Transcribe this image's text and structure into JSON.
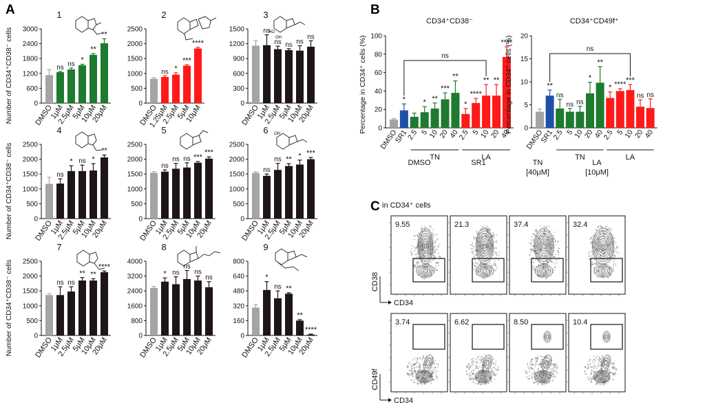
{
  "figure": {
    "panel_labels": {
      "a": "A",
      "b": "B",
      "c": "C"
    },
    "colors": {
      "gray": "#a4a4a4",
      "green": "#1e7a2e",
      "red": "#ff1a1a",
      "blue": "#1f50a8",
      "black": "#1e1517"
    }
  },
  "chart_data": [
    {
      "id": "a1",
      "panel": "A",
      "type": "bar",
      "title": "1",
      "structure_icon": "phthalide-compound-1-structure-icon",
      "ylabel": "Number of CD34⁺CD38⁻ cells",
      "categories": [
        "DMSO",
        "1μM",
        "2.5μM",
        "5μM",
        "10μM",
        "20μM"
      ],
      "values": [
        1130,
        1250,
        1360,
        1530,
        1950,
        2420
      ],
      "errors": [
        220,
        30,
        60,
        40,
        50,
        180
      ],
      "significance": [
        "",
        "ns",
        "ns",
        "*",
        "**",
        "**"
      ],
      "ylim": [
        0,
        3000
      ],
      "yticks": [
        0,
        600,
        1200,
        1800,
        2400,
        3000
      ],
      "colors": [
        "gray",
        "green",
        "green",
        "green",
        "green",
        "green"
      ]
    },
    {
      "id": "a2",
      "panel": "A",
      "type": "bar",
      "title": "2",
      "structure_icon": "dimeric-phthalide-compound-2-structure-icon",
      "ylabel": "",
      "categories": [
        "DMSO",
        "1.25μM",
        "2.5μM",
        "5μM",
        "10μM"
      ],
      "values": [
        820,
        880,
        960,
        1260,
        1840
      ],
      "errors": [
        40,
        40,
        60,
        30,
        40
      ],
      "significance": [
        "",
        "ns",
        "*",
        "***",
        "****"
      ],
      "ylim": [
        0,
        2500
      ],
      "yticks": [
        0,
        500,
        1000,
        1500,
        2000,
        2500
      ],
      "colors": [
        "gray",
        "red",
        "red",
        "red",
        "red"
      ]
    },
    {
      "id": "a3",
      "panel": "A",
      "type": "bar",
      "title": "3",
      "structure_icon": "dihydroxy-phthalide-compound-3-structure-icon",
      "ylabel": "",
      "categories": [
        "DMSO",
        "1μM",
        "2.5μM",
        "5μM",
        "10μM",
        "20μM"
      ],
      "values": [
        1160,
        1170,
        1090,
        1070,
        1060,
        1140
      ],
      "errors": [
        100,
        210,
        60,
        30,
        100,
        120
      ],
      "significance": [
        "",
        "ns",
        "ns",
        "ns",
        "ns",
        "ns"
      ],
      "ylim": [
        0,
        1500
      ],
      "yticks": [
        0,
        300,
        600,
        900,
        1200,
        1500
      ],
      "colors": [
        "gray",
        "black",
        "black",
        "black",
        "black",
        "black"
      ]
    },
    {
      "id": "a4",
      "panel": "A",
      "type": "bar",
      "title": "4",
      "structure_icon": "butylidene-phthalide-compound-4-structure-icon",
      "ylabel": "Number of CD34⁺CD38⁻ cells",
      "categories": [
        "DMSO",
        "1μM",
        "2.5μM",
        "5μM",
        "10μM",
        "20μM"
      ],
      "values": [
        1170,
        1180,
        1600,
        1600,
        1620,
        2060
      ],
      "errors": [
        220,
        160,
        180,
        200,
        230,
        80
      ],
      "significance": [
        "",
        "ns",
        "*",
        "ns",
        "*",
        "**"
      ],
      "ylim": [
        0,
        2500
      ],
      "yticks": [
        0,
        500,
        1000,
        1500,
        2000,
        2500
      ],
      "colors": [
        "gray",
        "black",
        "black",
        "black",
        "black",
        "black"
      ]
    },
    {
      "id": "a5",
      "panel": "A",
      "type": "bar",
      "title": "5",
      "structure_icon": "phthalide-compound-5-structure-icon",
      "ylabel": "",
      "categories": [
        "DMSO",
        "1μM",
        "2.5μM",
        "5μM",
        "10μM",
        "20μM"
      ],
      "values": [
        1540,
        1580,
        1680,
        1720,
        1880,
        2020
      ],
      "errors": [
        40,
        60,
        180,
        160,
        40,
        60
      ],
      "significance": [
        "",
        "ns",
        "ns",
        "ns",
        "***",
        "***"
      ],
      "ylim": [
        0,
        2500
      ],
      "yticks": [
        0,
        500,
        1000,
        1500,
        2000,
        2500
      ],
      "colors": [
        "gray",
        "black",
        "black",
        "black",
        "black",
        "black"
      ]
    },
    {
      "id": "a6",
      "panel": "A",
      "type": "bar",
      "title": "6",
      "structure_icon": "hydroxy-phthalide-compound-6-structure-icon",
      "ylabel": "",
      "categories": [
        "DMSO",
        "1μM",
        "2.5μM",
        "5μM",
        "10μM",
        "20μM"
      ],
      "values": [
        1540,
        1440,
        1640,
        1770,
        1820,
        2000
      ],
      "errors": [
        40,
        60,
        220,
        80,
        150,
        60
      ],
      "significance": [
        "",
        "ns",
        "ns",
        "**",
        "*",
        "***"
      ],
      "ylim": [
        0,
        2500
      ],
      "yticks": [
        0,
        500,
        1000,
        1500,
        2000,
        2500
      ],
      "colors": [
        "gray",
        "black",
        "black",
        "black",
        "black",
        "black"
      ]
    },
    {
      "id": "a7",
      "panel": "A",
      "type": "bar",
      "title": "7",
      "structure_icon": "butyl-phthalide-compound-7-structure-icon",
      "ylabel": "Number of CD34⁺CD38⁻ cells",
      "categories": [
        "DMSO",
        "1μM",
        "2.5μM",
        "5μM",
        "10μM",
        "20μM"
      ],
      "values": [
        1360,
        1360,
        1480,
        1850,
        1850,
        2130
      ],
      "errors": [
        50,
        280,
        160,
        100,
        60,
        40
      ],
      "significance": [
        "",
        "ns",
        "ns",
        "**",
        "**",
        "****"
      ],
      "ylim": [
        0,
        2500
      ],
      "yticks": [
        0,
        500,
        1000,
        1500,
        2000,
        2500
      ],
      "colors": [
        "gray",
        "black",
        "black",
        "black",
        "black",
        "black"
      ]
    },
    {
      "id": "a8",
      "panel": "A",
      "type": "bar",
      "title": "8",
      "structure_icon": "phthalide-dimer-compound-8-structure-icon",
      "ylabel": "",
      "categories": [
        "DMSO",
        "1μM",
        "2.5μM",
        "5μM",
        "10μM",
        "20μM"
      ],
      "values": [
        2560,
        2900,
        2760,
        3040,
        2960,
        2600
      ],
      "errors": [
        80,
        200,
        400,
        460,
        240,
        300
      ],
      "significance": [
        "",
        "*",
        "ns",
        "ns",
        "ns",
        "ns"
      ],
      "ylim": [
        0,
        4000
      ],
      "yticks": [
        0,
        800,
        1600,
        2400,
        3200,
        4000
      ],
      "colors": [
        "gray",
        "black",
        "black",
        "black",
        "black",
        "black"
      ]
    },
    {
      "id": "a9",
      "panel": "A",
      "type": "bar",
      "title": "9",
      "structure_icon": "phthalide-dimer-compound-9-structure-icon",
      "ylabel": "",
      "categories": [
        "DMSO",
        "1μM",
        "2.5μM",
        "5μM",
        "10μM",
        "20μM"
      ],
      "values": [
        300,
        490,
        400,
        450,
        160,
        10
      ],
      "errors": [
        30,
        90,
        80,
        10,
        10,
        5
      ],
      "significance": [
        "",
        "*",
        "ns",
        "**",
        "**",
        "****"
      ],
      "ylim": [
        0,
        800
      ],
      "yticks": [
        0,
        160,
        320,
        480,
        640,
        800
      ],
      "colors": [
        "gray",
        "black",
        "black",
        "black",
        "black",
        "black"
      ]
    },
    {
      "id": "b1",
      "panel": "B",
      "type": "bar",
      "title": "CD34⁺CD38⁻",
      "ylabel": "Percentage in CD34⁺ cells (%)",
      "categories": [
        "DMSO",
        "SR1",
        "2.5",
        "5",
        "10",
        "20",
        "40",
        "2.5",
        "5",
        "10",
        "20",
        "40"
      ],
      "values": [
        9,
        19,
        12,
        17,
        21,
        31,
        38,
        15,
        27,
        35,
        35,
        77
      ],
      "errors": [
        1,
        7,
        4,
        6,
        6,
        7,
        13,
        6,
        5,
        12,
        12,
        11
      ],
      "significance": [
        "",
        "*",
        "",
        "*",
        "**",
        "***",
        "**",
        "*",
        "****",
        "**",
        "**",
        "****"
      ],
      "group_labels": [
        "TN",
        "LA"
      ],
      "bracket_label": "ns",
      "ylim": [
        0,
        100
      ],
      "yticks": [
        0,
        20,
        40,
        60,
        80,
        100
      ],
      "colors": [
        "gray",
        "blue",
        "green",
        "green",
        "green",
        "green",
        "green",
        "red",
        "red",
        "red",
        "red",
        "red"
      ]
    },
    {
      "id": "b2",
      "panel": "B",
      "type": "bar",
      "title": "CD34⁺CD49f⁺",
      "ylabel": "Percentage in CD34⁺ cells (%)",
      "categories": [
        "DMSO",
        "SR1",
        "2.5",
        "5",
        "10",
        "20",
        "40",
        "2.5",
        "5",
        "10",
        "20",
        "40"
      ],
      "values": [
        3.5,
        7,
        4.2,
        3.5,
        3.5,
        7.5,
        9.8,
        6.5,
        8,
        8.2,
        4.6,
        4.3
      ],
      "errors": [
        0.6,
        1.2,
        2,
        0.7,
        1.2,
        2.4,
        3.5,
        1.3,
        0.5,
        1.2,
        1.5,
        2
      ],
      "significance": [
        "",
        "**",
        "ns",
        "ns",
        "ns",
        "*",
        "**",
        "*",
        "****",
        "***",
        "ns",
        "ns"
      ],
      "group_labels": [
        "TN",
        "LA"
      ],
      "bracket_label": "ns",
      "ylim": [
        0,
        20
      ],
      "yticks": [
        0,
        5,
        10,
        15,
        20
      ],
      "colors": [
        "gray",
        "blue",
        "green",
        "green",
        "green",
        "green",
        "green",
        "red",
        "red",
        "red",
        "red",
        "red"
      ]
    }
  ],
  "flow": {
    "subtitle": "in CD34⁺ cells",
    "columns": [
      "DMSO",
      "SR1",
      "TN\n[40μM]",
      "LA\n[10μM]"
    ],
    "row1": {
      "ylabel": "CD38",
      "xlabel": "CD34",
      "values": [
        "9.55",
        "21.3",
        "37.4",
        "32.4"
      ]
    },
    "row2": {
      "ylabel": "CD49f",
      "xlabel": "CD34",
      "values": [
        "3.74",
        "6.62",
        "8.50",
        "10.4"
      ]
    }
  }
}
